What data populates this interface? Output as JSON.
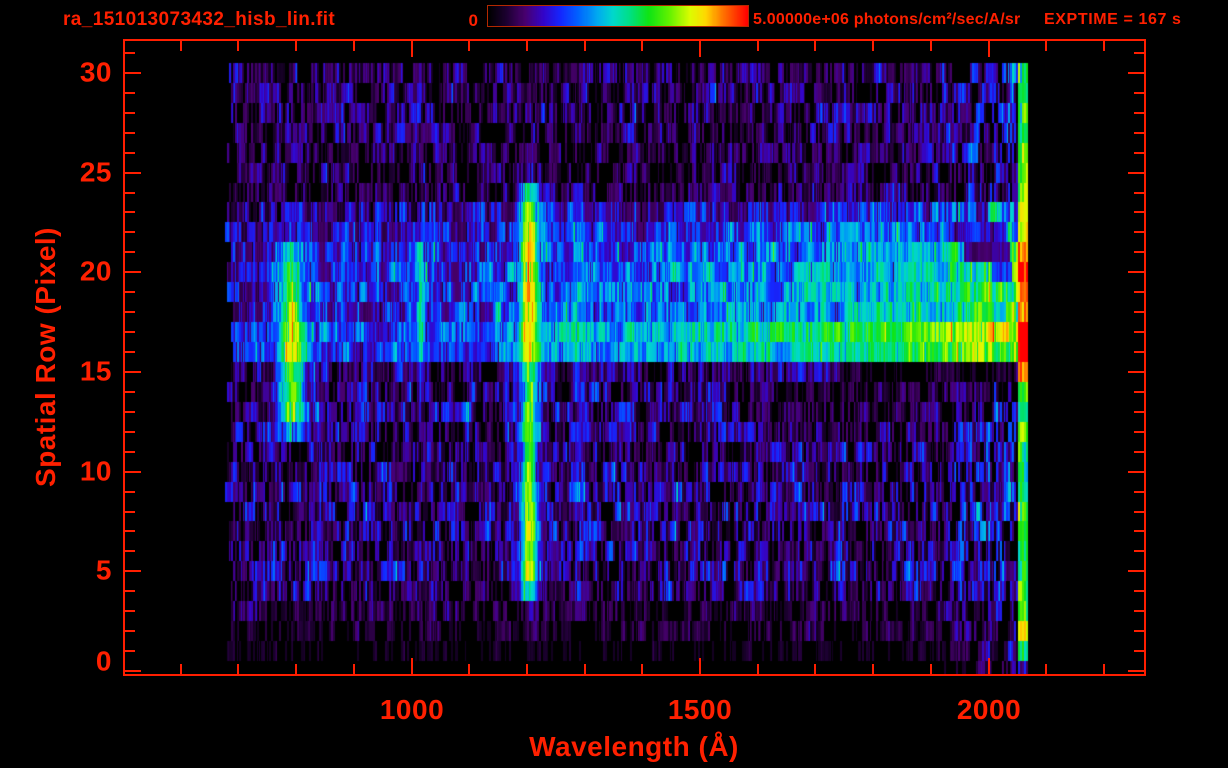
{
  "header": {
    "filename": "ra_151013073432_hisb_lin.fit",
    "colorbar": {
      "min_label": "0",
      "max_label": "5.00000e+06 photons/cm²/sec/A/sr"
    },
    "exptime_label": "EXPTIME = 167 s"
  },
  "chart_data": {
    "type": "heatmap",
    "xlabel": "Wavelength (Å)",
    "ylabel": "Spatial Row (Pixel)",
    "xlim": [
      500,
      2271
    ],
    "ylim": [
      -0.2,
      31.7
    ],
    "x_ticks": {
      "major": [
        1000,
        1500,
        2000
      ],
      "minor_step": 100,
      "minor_range": [
        600,
        2200
      ]
    },
    "y_ticks": {
      "major": [
        0,
        5,
        10,
        15,
        20,
        25,
        30
      ],
      "minor_step": 1,
      "minor_range": [
        1,
        31
      ]
    },
    "x_tick_labels": [
      "1000",
      "1500",
      "2000"
    ],
    "y_tick_labels": [
      "0",
      "5",
      "10",
      "15",
      "20",
      "25",
      "30"
    ],
    "wave_range": [
      677,
      2068
    ],
    "rows": 31,
    "colormap_stops": [
      [
        0,
        "#000000"
      ],
      [
        0.07,
        "#1c0030"
      ],
      [
        0.14,
        "#48006e"
      ],
      [
        0.21,
        "#3404c8"
      ],
      [
        0.28,
        "#1428ff"
      ],
      [
        0.35,
        "#0064ff"
      ],
      [
        0.42,
        "#00aaf0"
      ],
      [
        0.48,
        "#00d8cc"
      ],
      [
        0.55,
        "#00e080"
      ],
      [
        0.62,
        "#10e414"
      ],
      [
        0.7,
        "#66f200"
      ],
      [
        0.78,
        "#defc00"
      ],
      [
        0.84,
        "#ffd800"
      ],
      [
        0.9,
        "#ff7800"
      ],
      [
        1,
        "#ff0000"
      ]
    ],
    "noise": {
      "seed": 20151013,
      "row_amp": [
        0.05,
        0.14,
        0.26,
        0.34,
        0.55,
        0.58,
        0.58,
        0.6,
        0.6,
        0.58,
        0.55,
        0.55,
        0.56,
        0.6,
        0.56,
        0.5,
        0.55,
        0.56,
        0.6,
        0.6,
        0.58,
        0.58,
        0.56,
        0.56,
        0.44,
        0.42,
        0.42,
        0.44,
        0.5,
        0.5,
        0.48
      ],
      "ar": 0.55,
      "slow_ar": 0.1,
      "cut": 0.2,
      "power": 1.25,
      "scale": 0.78,
      "threshold": 0.045,
      "cols": 401
    },
    "features": [
      {
        "type": "hband",
        "name": "continuum-band",
        "base": 0.15,
        "gain": 0.54,
        "gamma": 1.6,
        "row_weights": {
          "15": 0.06,
          "16": 1.05,
          "17": 1.2,
          "18": 0.78,
          "19": 0.8,
          "20": 0.75,
          "21": 0.68,
          "22": 0.52,
          "23": 0.3
        }
      },
      {
        "type": "vline",
        "name": "lyman-alpha-emission-line",
        "center": 1205,
        "sigma": 13,
        "halo_sigma": 30,
        "halo_amp": 0.13,
        "halo_rows": [
          4,
          24
        ],
        "row_amps": {
          "3": 0.06,
          "4": 0.32,
          "5": 0.68,
          "6": 0.66,
          "7": 0.72,
          "8": 0.68,
          "9": 0.6,
          "10": 0.55,
          "11": 0.5,
          "12": 0.52,
          "13": 0.56,
          "14": 0.58,
          "15": 0.54,
          "16": 0.54,
          "17": 0.56,
          "18": 0.6,
          "19": 0.68,
          "20": 0.64,
          "21": 0.64,
          "22": 0.66,
          "23": 0.58,
          "24": 0.54
        }
      },
      {
        "type": "vline",
        "name": "emission-blob-790",
        "center": 793,
        "sigma": 18,
        "halo_sigma": 45,
        "halo_amp": 0.12,
        "halo_rows": [
          12,
          22
        ],
        "row_amps": {
          "12": 0.22,
          "13": 0.64,
          "14": 0.62,
          "15": 0.58,
          "16": 0.64,
          "17": 0.6,
          "18": 0.52,
          "19": 0.42,
          "20": 0.34,
          "21": 0.16
        }
      },
      {
        "type": "vline",
        "name": "cyan-streak-1015",
        "center": 1016,
        "sigma": 6,
        "halo_sigma": 14,
        "halo_amp": 0.05,
        "halo_rows": [
          14,
          22
        ],
        "row_amps": {
          "15": 0.08,
          "16": 0.14,
          "17": 0.28,
          "18": 0.3,
          "19": 0.28,
          "20": 0.26,
          "21": 0.24
        }
      },
      {
        "type": "vline",
        "name": "cyan-streak-1290",
        "center": 1292,
        "sigma": 12,
        "halo_sigma": 24,
        "halo_amp": 0.04,
        "halo_rows": [
          6,
          24
        ],
        "row_amps": {
          "8": 0.12,
          "9": 0.13,
          "10": 0.12,
          "11": 0.1,
          "14": 0.09,
          "15": 0.1,
          "16": 0.11,
          "17": 0.1,
          "18": 0.11,
          "19": 0.12,
          "20": 0.13,
          "21": 0.12,
          "22": 0.11,
          "23": 0.09
        }
      },
      {
        "type": "ramp",
        "name": "red-end-brightening",
        "start": 1860,
        "end": 2050,
        "amp": 0.4,
        "gamma": 1.7,
        "row_boost": {
          "1": 1.1,
          "2": 1.1,
          "3": 1.1,
          "16": 1.0,
          "17": 1.0,
          "23": 1.15,
          "24": 1.1,
          "25": 1.1,
          "26": 1.15,
          "27": 1.2,
          "28": 1.25,
          "29": 1.2,
          "30": 1.2
        }
      },
      {
        "type": "edge",
        "name": "detector-edge-column",
        "start": 2052,
        "end": 2068,
        "default_amp": 0.5,
        "row_amps": {
          "0": 0.15,
          "1": 0.5,
          "2": 0.8,
          "15": 0.95,
          "16": 0.88,
          "17": 0.68,
          "18": 0.5,
          "19": 0.5,
          "20": 0.62,
          "21": 0.58
        }
      },
      {
        "type": "dropout",
        "name": "row15-right-gap",
        "row": 15,
        "start": 1750,
        "end": 2048,
        "factor": 0.35
      },
      {
        "type": "dropout",
        "name": "row21-right-gap",
        "row": 21,
        "start": 1958,
        "end": 2036,
        "factor": 0.3
      },
      {
        "type": "dropout",
        "name": "row22-right-gap",
        "row": 22,
        "start": 1938,
        "end": 2030,
        "factor": 0.5
      },
      {
        "type": "dropout",
        "name": "row20-right-gap",
        "row": 20,
        "start": 2005,
        "end": 2040,
        "factor": 0.5
      },
      {
        "type": "dropout",
        "name": "row14-right-dim",
        "row": 14,
        "start": 1560,
        "end": 2000,
        "factor": 0.6
      },
      {
        "type": "dropout",
        "name": "row13-right-dim",
        "row": 13,
        "start": 1580,
        "end": 2010,
        "factor": 0.7
      }
    ]
  }
}
